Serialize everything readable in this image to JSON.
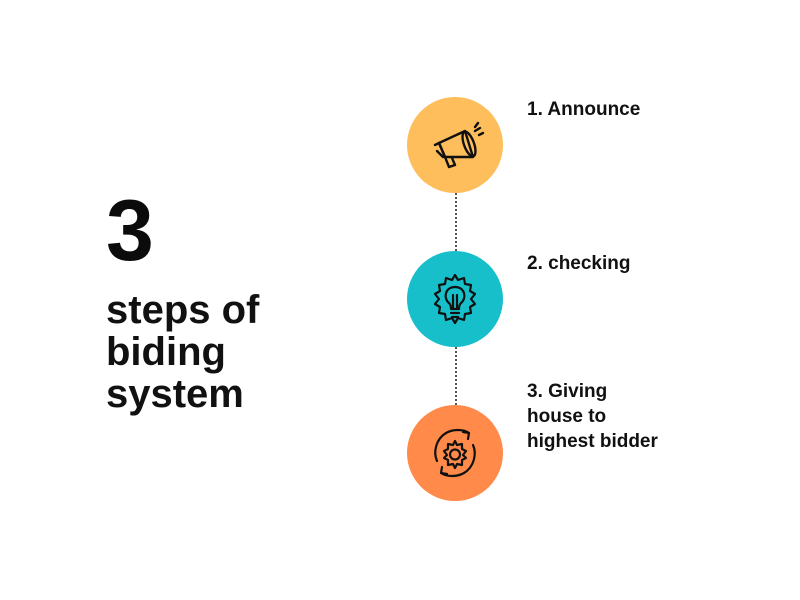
{
  "title": {
    "number": "3",
    "text": "steps of\nbiding\nsystem"
  },
  "steps": [
    {
      "label": "1. Announce",
      "icon": "megaphone-icon",
      "color": "#FFBE5C"
    },
    {
      "label": "2. checking",
      "icon": "lightbulb-gear-icon",
      "color": "#16BFC9"
    },
    {
      "label": "3. Giving\nhouse to\nhighest bidder",
      "icon": "gear-cycle-icon",
      "color": "#FF8A4A"
    }
  ]
}
